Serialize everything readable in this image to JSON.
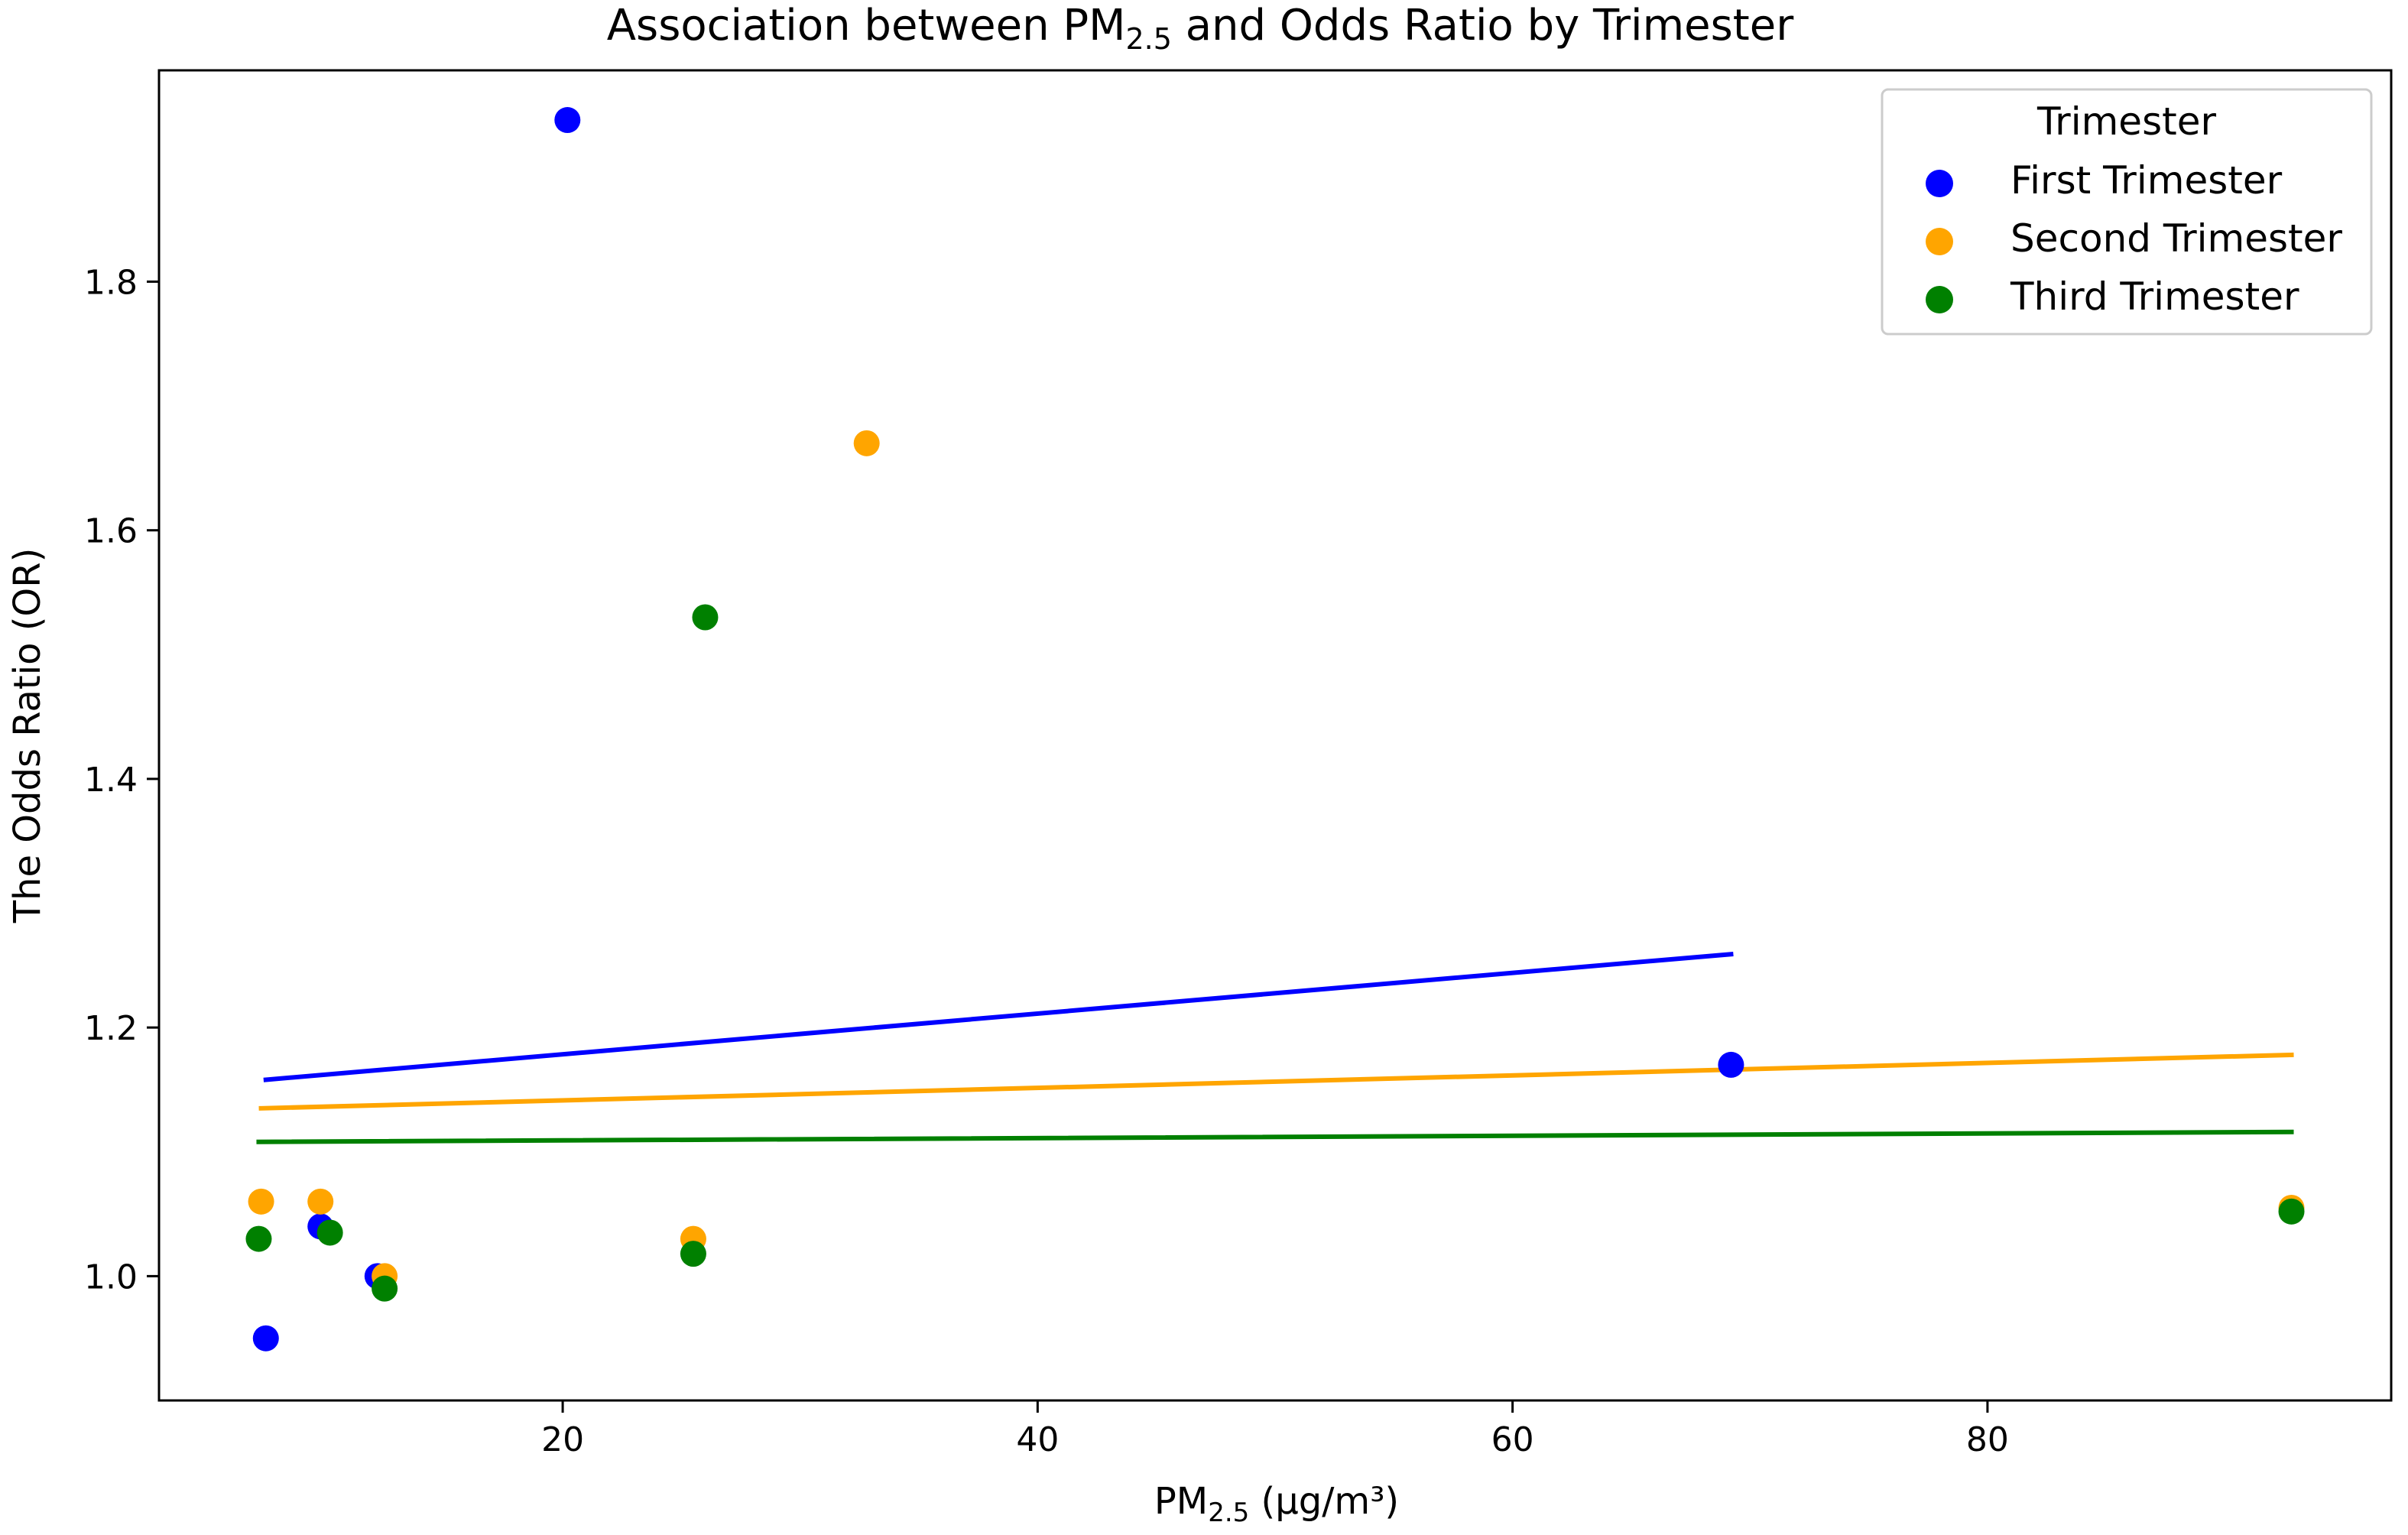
{
  "chart_data": {
    "type": "scatter",
    "title": "Association between PM",
    "title_subscript": "2.5",
    "title_suffix": " and Odds Ratio by Trimester",
    "xlabel": "PM",
    "xlabel_subscript": "2.5",
    "xlabel_suffix": " (µg/m³)",
    "ylabel": "The Odds Ratio (OR)",
    "xlim": [
      3.0,
      97.0
    ],
    "ylim": [
      0.9,
      1.97
    ],
    "xticks": [
      20,
      40,
      60,
      80
    ],
    "xtick_labels": [
      "20",
      "40",
      "60",
      "80"
    ],
    "yticks": [
      1.0,
      1.2,
      1.4,
      1.6,
      1.8
    ],
    "ytick_labels": [
      "1.0",
      "1.2",
      "1.4",
      "1.6",
      "1.8"
    ],
    "grid": false,
    "legend": {
      "title": "Trimester",
      "position": "top-right"
    },
    "series": [
      {
        "name": "First Trimester",
        "color": "#0000ff",
        "points": [
          [
            7.5,
            0.95
          ],
          [
            9.8,
            1.04
          ],
          [
            12.2,
            1.0
          ],
          [
            20.2,
            1.93
          ],
          [
            69.2,
            1.17
          ]
        ],
        "trend": [
          [
            7.5,
            1.158
          ],
          [
            69.2,
            1.259
          ]
        ]
      },
      {
        "name": "Second Trimester",
        "color": "#ffa500",
        "points": [
          [
            7.3,
            1.06
          ],
          [
            9.8,
            1.06
          ],
          [
            12.5,
            1.0
          ],
          [
            25.5,
            1.03
          ],
          [
            32.8,
            1.67
          ],
          [
            92.8,
            1.055
          ]
        ],
        "trend": [
          [
            7.3,
            1.135
          ],
          [
            92.8,
            1.178
          ]
        ]
      },
      {
        "name": "Third Trimester",
        "color": "#008000",
        "points": [
          [
            7.2,
            1.03
          ],
          [
            10.2,
            1.035
          ],
          [
            12.5,
            0.99
          ],
          [
            25.5,
            1.018
          ],
          [
            26.0,
            1.53
          ],
          [
            92.8,
            1.052
          ]
        ],
        "trend": [
          [
            7.2,
            1.108
          ],
          [
            92.8,
            1.116
          ]
        ]
      }
    ]
  }
}
